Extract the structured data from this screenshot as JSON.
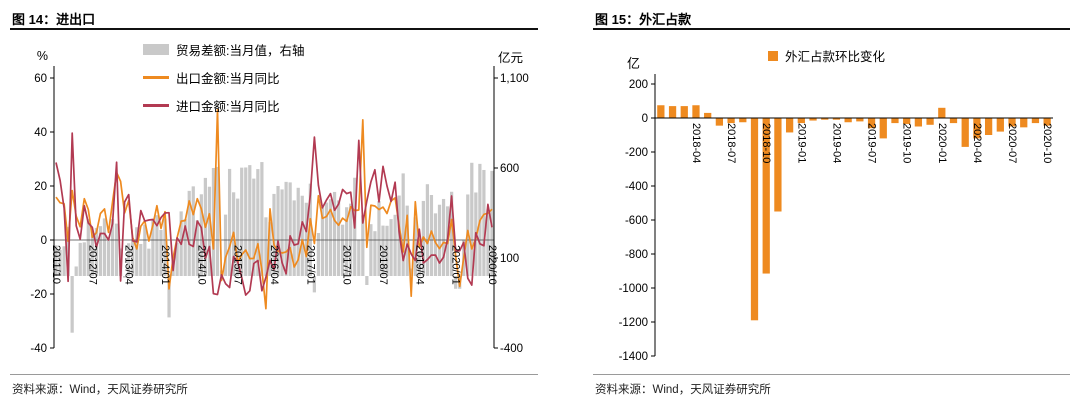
{
  "chart_data": [
    {
      "figure_label": "图 14：进出口",
      "type": "combo_bar_line",
      "source": "资料来源：Wind，天风证券研究所",
      "frequency": "monthly",
      "left_axis": {
        "unit": "%",
        "min": -40,
        "max": 60,
        "ticks": [
          60,
          40,
          20,
          0,
          -20,
          -40
        ]
      },
      "right_axis": {
        "unit": "亿元",
        "min": -400,
        "max": 1100,
        "tick_values": [
          1100,
          600,
          100,
          -400
        ],
        "tick_labels": [
          "1,100",
          "600",
          "100",
          "-400"
        ]
      },
      "x_tick_labels": [
        "2011/10",
        "2012/07",
        "2013/04",
        "2014/01",
        "2014/10",
        "2015/07",
        "2016/04",
        "2017/01",
        "2017/10",
        "2018/07",
        "2019/04",
        "2020/01",
        "2020/10"
      ],
      "series": [
        {
          "name": "贸易差额:当月值，右轴",
          "type": "bar",
          "axis": "right",
          "color": "#c9c9c9",
          "values": [
            170,
            145,
            165,
            273,
            -315,
            53,
            184,
            187,
            317,
            251,
            267,
            277,
            320,
            196,
            316,
            291,
            153,
            -9,
            182,
            204,
            271,
            178,
            285,
            152,
            311,
            338,
            256,
            319,
            -230,
            77,
            185,
            359,
            316,
            473,
            498,
            310,
            454,
            545,
            496,
            600,
            606,
            31,
            341,
            595,
            465,
            430,
            602,
            603,
            616,
            541,
            594,
            633,
            326,
            299,
            456,
            500,
            481,
            523,
            520,
            420,
            490,
            446,
            407,
            513,
            -91,
            239,
            380,
            408,
            427,
            467,
            420,
            285,
            382,
            402,
            546,
            203,
            337,
            -50,
            288,
            249,
            416,
            280,
            279,
            316,
            340,
            447,
            570,
            391,
            41,
            326,
            138,
            417,
            510,
            450,
            348,
            396,
            428,
            387,
            468,
            -71,
            -71,
            199,
            453,
            629,
            464,
            623,
            589,
            370,
            584
          ]
        },
        {
          "name": "出口金额:当月同比",
          "type": "line",
          "axis": "left",
          "color": "#ee8a20",
          "values": [
            15.9,
            13.8,
            13.4,
            -0.5,
            18.3,
            8.8,
            4.9,
            15.3,
            11.3,
            1.0,
            2.7,
            9.8,
            11.5,
            2.8,
            14.0,
            25.0,
            21.7,
            10.0,
            14.6,
            0.9,
            -3.3,
            5.1,
            7.1,
            -0.4,
            5.6,
            12.7,
            4.3,
            10.5,
            -18.1,
            -6.6,
            0.8,
            7.0,
            7.2,
            14.5,
            9.4,
            15.3,
            11.6,
            4.7,
            9.7,
            -3.3,
            48.3,
            -15.0,
            -6.4,
            -2.5,
            2.8,
            -8.3,
            -5.5,
            -3.7,
            -6.9,
            -6.8,
            -1.4,
            -11.2,
            -25.4,
            11.5,
            -1.8,
            -4.1,
            -4.8,
            -4.4,
            -2.8,
            -10.0,
            -7.3,
            0.1,
            -6.1,
            7.9,
            -1.3,
            16.4,
            8.0,
            8.7,
            11.3,
            7.2,
            5.5,
            8.1,
            6.9,
            12.3,
            10.9,
            11.1,
            44.5,
            -2.7,
            12.9,
            12.6,
            11.3,
            12.2,
            9.8,
            14.5,
            15.6,
            5.4,
            -4.4,
            9.1,
            -20.8,
            14.2,
            -2.7,
            1.1,
            -1.3,
            3.3,
            -1.0,
            -3.2,
            -0.9,
            -1.3,
            7.6,
            -6.0,
            -17.2,
            -6.6,
            3.5,
            -3.3,
            0.5,
            7.2,
            9.5,
            9.9,
            11.4
          ]
        },
        {
          "name": "进口金额:当月同比",
          "type": "line",
          "axis": "left",
          "color": "#b23a52",
          "values": [
            28.7,
            22.1,
            11.8,
            -15.3,
            39.6,
            5.3,
            0.3,
            12.7,
            6.3,
            4.7,
            -2.6,
            2.4,
            2.4,
            0.0,
            6.0,
            28.8,
            -15.2,
            14.1,
            16.8,
            -0.3,
            -0.7,
            10.9,
            7.0,
            7.4,
            7.6,
            5.3,
            8.3,
            10.0,
            10.1,
            -11.3,
            0.8,
            -1.6,
            5.2,
            -1.6,
            -2.4,
            7.0,
            4.6,
            -6.7,
            -2.4,
            -19.9,
            -20.2,
            -12.9,
            -16.2,
            -17.6,
            -6.1,
            -8.1,
            -13.8,
            -20.4,
            -18.8,
            -8.7,
            -7.6,
            -18.8,
            -13.8,
            -7.6,
            -10.9,
            -0.4,
            -8.4,
            -12.5,
            1.5,
            -1.9,
            -1.4,
            6.7,
            3.1,
            16.7,
            38.1,
            20.3,
            11.9,
            14.8,
            17.2,
            11.0,
            13.3,
            18.7,
            17.2,
            17.7,
            4.5,
            36.9,
            6.3,
            14.4,
            21.5,
            26.0,
            14.1,
            27.3,
            20.0,
            14.3,
            21.4,
            3.0,
            -7.6,
            -1.5,
            -5.2,
            -7.6,
            4.0,
            -8.5,
            -7.3,
            -5.6,
            -5.6,
            -8.5,
            -6.4,
            0.3,
            16.3,
            -4.0,
            -4.0,
            -0.9,
            -14.2,
            -16.7,
            2.7,
            -1.4,
            -2.1,
            13.2,
            4.7
          ]
        }
      ]
    },
    {
      "figure_label": "图 15：外汇占款",
      "type": "bar",
      "source": "资料来源：Wind，天风证券研究所",
      "frequency": "monthly",
      "y_axis": {
        "unit": "亿",
        "min": -1400,
        "max": 200,
        "ticks": [
          200,
          0,
          -200,
          -400,
          -600,
          -800,
          -1000,
          -1200,
          -1400
        ]
      },
      "x_tick_labels": [
        "2018-04",
        "2018-07",
        "2018-10",
        "2019-01",
        "2019-04",
        "2019-07",
        "2019-10",
        "2020-01",
        "2020-04",
        "2020-07",
        "2020-10"
      ],
      "x_tick_start": 3,
      "x_tick_every": 3,
      "series": [
        {
          "name": "外汇占款环比变化",
          "type": "bar",
          "color": "#ee8a20",
          "values": [
            75,
            70,
            70,
            75,
            30,
            -45,
            -30,
            -25,
            -1190,
            -915,
            -550,
            -85,
            -30,
            -15,
            -10,
            -10,
            -25,
            -20,
            -60,
            -120,
            -30,
            -35,
            -50,
            -40,
            60,
            -30,
            -170,
            -120,
            -100,
            -80,
            -50,
            -55,
            -30,
            -45
          ]
        }
      ]
    }
  ]
}
